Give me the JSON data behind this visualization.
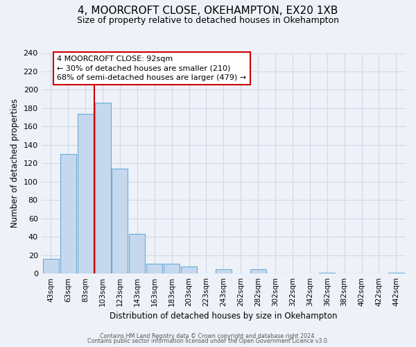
{
  "title": "4, MOORCROFT CLOSE, OKEHAMPTON, EX20 1XB",
  "subtitle": "Size of property relative to detached houses in Okehampton",
  "xlabel": "Distribution of detached houses by size in Okehampton",
  "ylabel": "Number of detached properties",
  "bar_labels": [
    "43sqm",
    "63sqm",
    "83sqm",
    "103sqm",
    "123sqm",
    "143sqm",
    "163sqm",
    "183sqm",
    "203sqm",
    "223sqm",
    "243sqm",
    "262sqm",
    "282sqm",
    "302sqm",
    "322sqm",
    "342sqm",
    "362sqm",
    "382sqm",
    "402sqm",
    "422sqm",
    "442sqm"
  ],
  "bar_values": [
    16,
    130,
    174,
    186,
    114,
    43,
    11,
    11,
    8,
    0,
    5,
    0,
    5,
    0,
    0,
    0,
    1,
    0,
    0,
    0,
    1
  ],
  "bar_color": "#c5d8ee",
  "bar_edge_color": "#6aaad4",
  "annotation_text": "4 MOORCROFT CLOSE: 92sqm\n← 30% of detached houses are smaller (210)\n68% of semi-detached houses are larger (479) →",
  "annotation_box_color": "#ffffff",
  "annotation_box_edge": "#cc0000",
  "property_line_color": "#cc0000",
  "ylim": [
    0,
    240
  ],
  "yticks": [
    0,
    20,
    40,
    60,
    80,
    100,
    120,
    140,
    160,
    180,
    200,
    220,
    240
  ],
  "footer_line1": "Contains HM Land Registry data © Crown copyright and database right 2024.",
  "footer_line2": "Contains public sector information licensed under the Open Government Licence v3.0.",
  "background_color": "#eef2f8",
  "grid_color": "#d0d8e8",
  "title_fontsize": 11,
  "subtitle_fontsize": 9
}
